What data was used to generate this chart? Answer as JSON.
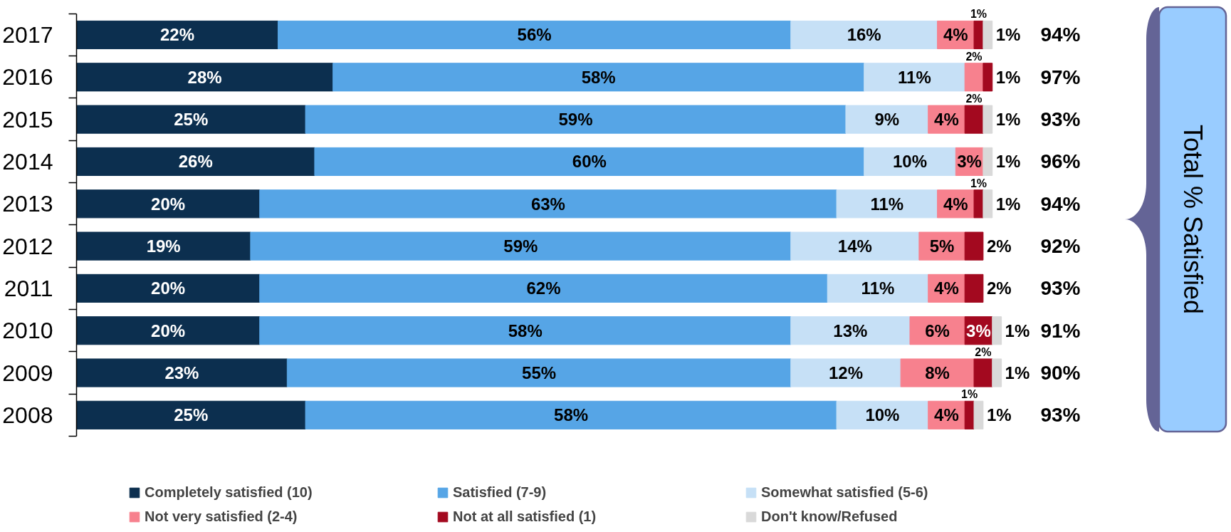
{
  "chart_data": {
    "type": "bar",
    "orientation": "horizontal",
    "stacked": true,
    "categories": [
      "2017",
      "2016",
      "2015",
      "2014",
      "2013",
      "2012",
      "2011",
      "2010",
      "2009",
      "2008"
    ],
    "series": [
      {
        "name": "Completely satisfied (10)",
        "color": "#0c2f4f",
        "values": [
          22,
          28,
          25,
          26,
          20,
          19,
          20,
          20,
          23,
          25
        ],
        "value_labels": [
          "22%",
          "28%",
          "25%",
          "26%",
          "20%",
          "19%",
          "20%",
          "20%",
          "23%",
          "25%"
        ]
      },
      {
        "name": "Satisfied (7-9)",
        "color": "#56a5e6",
        "values": [
          56,
          58,
          59,
          60,
          63,
          59,
          62,
          58,
          55,
          58
        ],
        "value_labels": [
          "56%",
          "58%",
          "59%",
          "60%",
          "63%",
          "59%",
          "62%",
          "58%",
          "55%",
          "58%"
        ]
      },
      {
        "name": "Somewhat satisfied (5-6)",
        "color": "#c6e0f6",
        "values": [
          16,
          11,
          9,
          10,
          11,
          14,
          11,
          13,
          12,
          10
        ],
        "value_labels": [
          "16%",
          "11%",
          "9%",
          "10%",
          "11%",
          "14%",
          "11%",
          "13%",
          "12%",
          "10%"
        ]
      },
      {
        "name": "Not very satisfied (2-4)",
        "color": "#f7818e",
        "values": [
          4,
          2,
          4,
          3,
          4,
          5,
          4,
          6,
          8,
          4
        ],
        "value_labels": [
          "4%",
          "2%",
          "4%",
          "3%",
          "4%",
          "5%",
          "4%",
          "6%",
          "8%",
          "4%"
        ]
      },
      {
        "name": "Not at all satisfied (1)",
        "color": "#a3091f",
        "values": [
          1,
          1,
          2,
          null,
          1,
          2,
          2,
          3,
          2,
          1
        ],
        "value_labels": [
          "1%",
          "1%",
          "2%",
          null,
          "1%",
          "2%",
          "2%",
          "3%",
          "2%",
          "1%"
        ]
      },
      {
        "name": "Don't know/Refused",
        "color": "#d9d9d9",
        "values": [
          1,
          null,
          1,
          1,
          1,
          null,
          null,
          1,
          1,
          1
        ],
        "value_labels": [
          "1%",
          null,
          "1%",
          "1%",
          "1%",
          null,
          null,
          "1%",
          "1%",
          "1%"
        ]
      }
    ],
    "annotations": [
      "Total % Satisfied",
      "94%",
      "97%",
      "93%",
      "96%",
      "94%",
      "92%",
      "93%",
      "91%",
      "90%",
      "93%"
    ],
    "legend": "bottom",
    "tick_labels": "y"
  }
}
